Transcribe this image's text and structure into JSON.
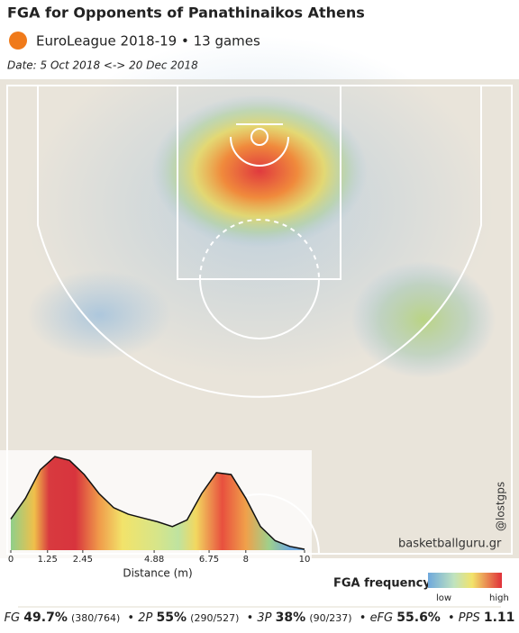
{
  "header": {
    "title": "FGA for Opponents of Panathinaikos Athens",
    "subtitle": "EuroLeague 2018-19 • 13 games",
    "date": "Date:  5 Oct 2018 <-> 20 Dec 2018"
  },
  "chart_data": {
    "type": "area",
    "x_label": "Distance (m)",
    "x": [
      0,
      0.5,
      1,
      1.5,
      2,
      2.5,
      3,
      3.5,
      4,
      4.5,
      5,
      5.5,
      6,
      6.5,
      7,
      7.5,
      8,
      8.5,
      9,
      9.5,
      10
    ],
    "values": [
      0.33,
      0.55,
      0.85,
      0.99,
      0.95,
      0.8,
      0.6,
      0.45,
      0.38,
      0.34,
      0.3,
      0.25,
      0.32,
      0.6,
      0.82,
      0.8,
      0.55,
      0.25,
      0.1,
      0.04,
      0.01
    ],
    "xlim": [
      0,
      10
    ],
    "ylim": [
      0,
      1
    ],
    "xticks": [
      0,
      1.25,
      2.45,
      4.88,
      6.75,
      8,
      10
    ]
  },
  "legend": {
    "title": "FGA frequency",
    "low": "low",
    "high": "high"
  },
  "watermark": "basketballguru.gr",
  "handle": "@lostgps",
  "stats": [
    {
      "label": "FG",
      "value": "49.7%",
      "detail": "(380/764)"
    },
    {
      "label": "2P",
      "value": "55%",
      "detail": "(290/527)"
    },
    {
      "label": "3P",
      "value": "38%",
      "detail": "(90/237)"
    },
    {
      "label": "eFG",
      "value": "55.6%",
      "detail": ""
    },
    {
      "label": "PPS",
      "value": "1.11",
      "detail": ""
    }
  ]
}
